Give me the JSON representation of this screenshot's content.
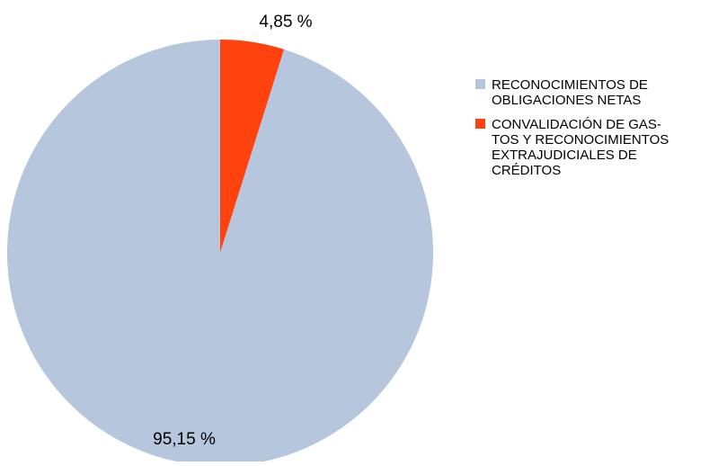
{
  "chart_data": {
    "type": "pie",
    "title": "",
    "start_angle_deg": 0,
    "direction": "clockwise",
    "legend_position": "right",
    "slices": [
      {
        "name": "CONVALIDACIÓN DE GASTOS Y RECONOCIMIENTOS EXTRAJUDICIALES DE CRÉDITOS",
        "legend_lines": [
          "CONVALIDACIÓN DE GAS-",
          "TOS Y RECONOCIMIENTOS",
          "EXTRAJUDICIALES DE",
          "CRÉDITOS"
        ],
        "value": 4.85,
        "label": "4,85 %",
        "color": "#ff420e"
      },
      {
        "name": "RECONOCIMIENTOS DE OBLIGACIONES NETAS",
        "legend_lines": [
          "RECONOCIMIENTOS DE",
          "OBLIGACIONES NETAS"
        ],
        "value": 95.15,
        "label": "95,15 %",
        "color": "#b5c6dd"
      }
    ],
    "legend_order": [
      1,
      0
    ]
  }
}
